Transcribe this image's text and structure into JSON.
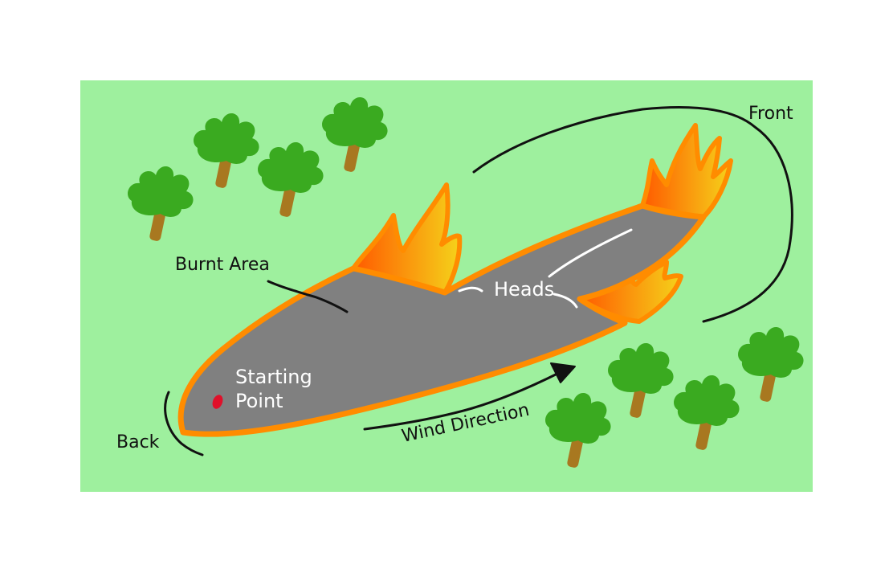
{
  "diagram": {
    "labels": {
      "front": "Front",
      "burnt_area": "Burnt Area",
      "heads": "Heads",
      "starting_point_line1": "Starting",
      "starting_point_line2": "Point",
      "wind_direction": "Wind Direction",
      "back": "Back"
    },
    "colors": {
      "grass": "#9ef09e",
      "burnt": "#808080",
      "fire_edge": "#ff8c00",
      "flame_inner": "#f5c518",
      "flame_outer": "#ff5a00",
      "tree_canopy": "#3aaa20",
      "tree_trunk": "#a87820",
      "ignition": "#e0102a",
      "annotation_line": "#111111"
    },
    "icons": [
      "tree-icon",
      "flame-icon",
      "ignition-point-icon",
      "wind-arrow-icon"
    ]
  }
}
